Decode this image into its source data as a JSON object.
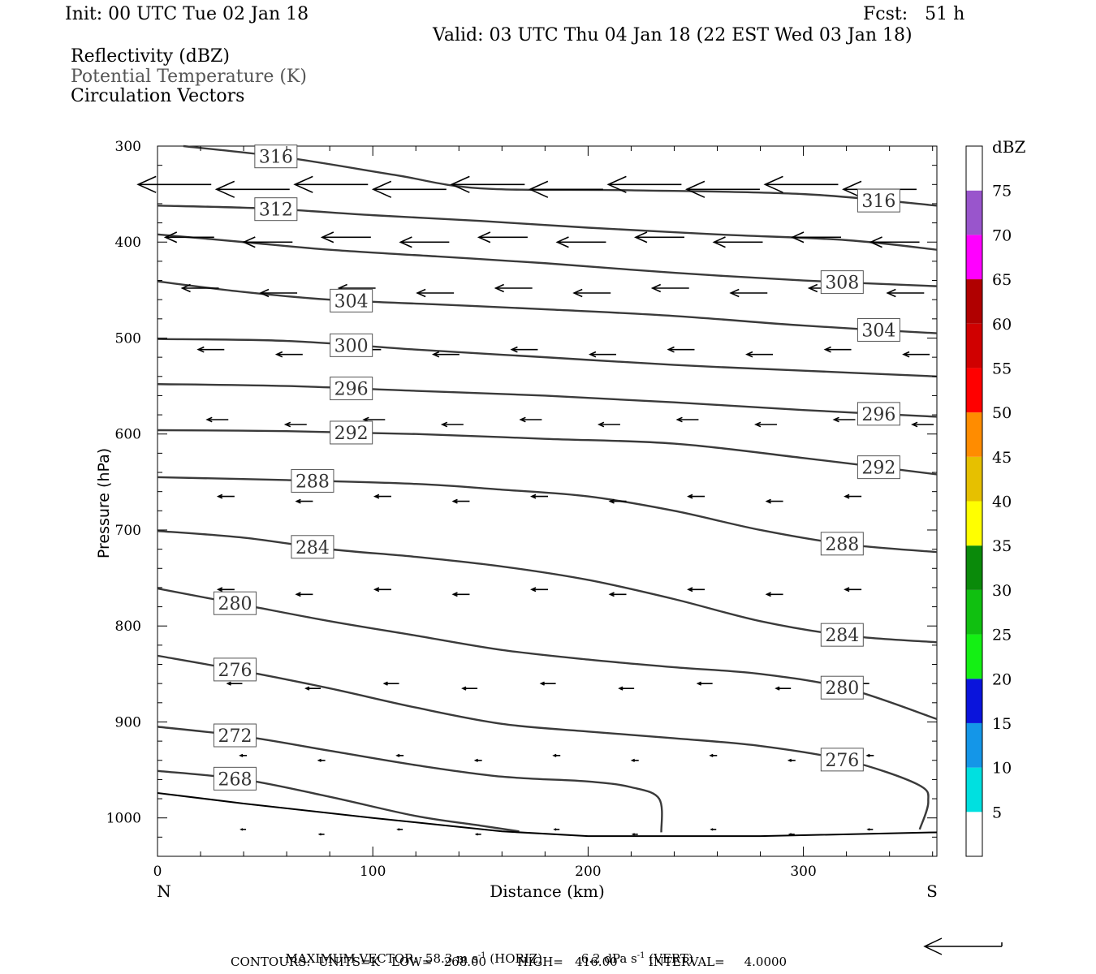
{
  "header": {
    "init": "Init: 00 UTC Tue 02 Jan 18",
    "fcst": "Fcst:   51 h",
    "valid": "Valid: 03 UTC Thu 04 Jan 18 (22 EST Wed 03 Jan 18)",
    "field1": "Reflectivity (dBZ)",
    "field2": "Potential Temperature (K)",
    "field3": "Circulation Vectors"
  },
  "footer": {
    "max_vector_prefix": "MAXIMUM VECTOR:  58.3 m s",
    "max_vector_sup1": "-1",
    "max_vector_mid": " (HORIZ)          6.2 dPa s",
    "max_vector_sup2": "-1",
    "max_vector_suffix": " (VERT)",
    "contours": "CONTOURS:  UNITS=K   LOW=   268.00        HIGH=   416.00        INTERVAL=     4.0000"
  },
  "colors": {
    "contour": "#3a3a3a",
    "field2_text": "#555555",
    "dbz_scale": [
      "#ffffff",
      "#00e0e0",
      "#1496e8",
      "#0a14dc",
      "#14f014",
      "#10c010",
      "#0a8a0a",
      "#ffff00",
      "#e6c000",
      "#ff8c00",
      "#ff0000",
      "#d00000",
      "#b00000",
      "#ff00ff",
      "#9955cc",
      "#ffffff"
    ]
  },
  "chart_data": {
    "type": "contour cross-section",
    "xlabel": "Distance (km)",
    "ylabel": "Pressure (hPa)",
    "xlim": [
      0,
      362
    ],
    "ylim": [
      1040,
      300
    ],
    "x_ticks": [
      "0",
      "100",
      "200",
      "300"
    ],
    "x_tick_values": [
      0,
      100,
      200,
      300
    ],
    "y_ticks": [
      "300",
      "400",
      "500",
      "600",
      "700",
      "800",
      "900",
      "1000"
    ],
    "y_tick_values": [
      300,
      400,
      500,
      600,
      700,
      800,
      900,
      1000
    ],
    "left_end_label": "N",
    "right_end_label": "S",
    "colorbar": {
      "unit": "dBZ",
      "labels": [
        "5",
        "10",
        "15",
        "20",
        "25",
        "30",
        "35",
        "40",
        "45",
        "50",
        "55",
        "60",
        "65",
        "70",
        "75"
      ],
      "bounds": [
        0,
        80
      ]
    },
    "theta_contours": [
      {
        "value": 316,
        "points": [
          [
            12,
            300
          ],
          [
            60,
            312
          ],
          [
            110,
            330
          ],
          [
            150,
            344
          ],
          [
            220,
            346
          ],
          [
            300,
            350
          ],
          [
            362,
            362
          ]
        ]
      },
      {
        "value": 312,
        "points": [
          [
            0,
            362
          ],
          [
            50,
            365
          ],
          [
            100,
            372
          ],
          [
            150,
            378
          ],
          [
            200,
            385
          ],
          [
            260,
            392
          ],
          [
            320,
            398
          ],
          [
            362,
            408
          ]
        ]
      },
      {
        "value": 308,
        "points": [
          [
            0,
            392
          ],
          [
            40,
            400
          ],
          [
            80,
            408
          ],
          [
            130,
            415
          ],
          [
            180,
            422
          ],
          [
            240,
            432
          ],
          [
            300,
            440
          ],
          [
            362,
            446
          ]
        ]
      },
      {
        "value": 304,
        "points": [
          [
            0,
            441
          ],
          [
            40,
            452
          ],
          [
            80,
            460
          ],
          [
            130,
            465
          ],
          [
            180,
            470
          ],
          [
            240,
            477
          ],
          [
            300,
            487
          ],
          [
            362,
            495
          ]
        ]
      },
      {
        "value": 300,
        "points": [
          [
            0,
            501
          ],
          [
            60,
            503
          ],
          [
            120,
            512
          ],
          [
            180,
            520
          ],
          [
            240,
            528
          ],
          [
            300,
            534
          ],
          [
            362,
            540
          ]
        ]
      },
      {
        "value": 296,
        "points": [
          [
            0,
            548
          ],
          [
            60,
            550
          ],
          [
            120,
            555
          ],
          [
            180,
            560
          ],
          [
            240,
            567
          ],
          [
            300,
            575
          ],
          [
            362,
            582
          ]
        ]
      },
      {
        "value": 292,
        "points": [
          [
            0,
            596
          ],
          [
            60,
            597
          ],
          [
            120,
            600
          ],
          [
            180,
            605
          ],
          [
            240,
            610
          ],
          [
            300,
            625
          ],
          [
            362,
            642
          ]
        ]
      },
      {
        "value": 288,
        "points": [
          [
            0,
            645
          ],
          [
            60,
            648
          ],
          [
            120,
            652
          ],
          [
            160,
            658
          ],
          [
            200,
            665
          ],
          [
            240,
            680
          ],
          [
            280,
            700
          ],
          [
            320,
            715
          ],
          [
            362,
            723
          ]
        ]
      },
      {
        "value": 284,
        "points": [
          [
            0,
            701
          ],
          [
            40,
            708
          ],
          [
            80,
            720
          ],
          [
            120,
            728
          ],
          [
            160,
            738
          ],
          [
            200,
            752
          ],
          [
            240,
            772
          ],
          [
            280,
            795
          ],
          [
            320,
            810
          ],
          [
            362,
            817
          ]
        ]
      },
      {
        "value": 280,
        "points": [
          [
            0,
            761
          ],
          [
            40,
            778
          ],
          [
            80,
            795
          ],
          [
            120,
            810
          ],
          [
            160,
            825
          ],
          [
            200,
            835
          ],
          [
            240,
            843
          ],
          [
            280,
            850
          ],
          [
            320,
            865
          ],
          [
            362,
            897
          ]
        ]
      },
      {
        "value": 276,
        "points": [
          [
            0,
            831
          ],
          [
            40,
            847
          ],
          [
            80,
            865
          ],
          [
            120,
            885
          ],
          [
            160,
            902
          ],
          [
            200,
            910
          ],
          [
            240,
            917
          ],
          [
            280,
            925
          ],
          [
            320,
            940
          ],
          [
            353,
            965
          ],
          [
            358,
            983
          ],
          [
            354,
            1012
          ]
        ]
      },
      {
        "value": 272,
        "points": [
          [
            0,
            905
          ],
          [
            40,
            915
          ],
          [
            80,
            930
          ],
          [
            120,
            945
          ],
          [
            160,
            957
          ],
          [
            200,
            962
          ],
          [
            220,
            968
          ],
          [
            233,
            980
          ],
          [
            234,
            1015
          ]
        ]
      },
      {
        "value": 268,
        "points": [
          [
            0,
            951
          ],
          [
            40,
            960
          ],
          [
            80,
            978
          ],
          [
            120,
            998
          ],
          [
            150,
            1008
          ],
          [
            168,
            1014
          ]
        ]
      }
    ],
    "terrain": [
      [
        0,
        974
      ],
      [
        40,
        985
      ],
      [
        100,
        1000
      ],
      [
        160,
        1014
      ],
      [
        200,
        1019
      ],
      [
        280,
        1019
      ],
      [
        362,
        1015
      ]
    ],
    "vectors_note": "arrows show mostly easterly (leftward) circulation, strongest near 350 hPa",
    "vector_reference": "58.3 m s-1 (HORIZ), 6.2 dPa s-1 (VERT)"
  }
}
